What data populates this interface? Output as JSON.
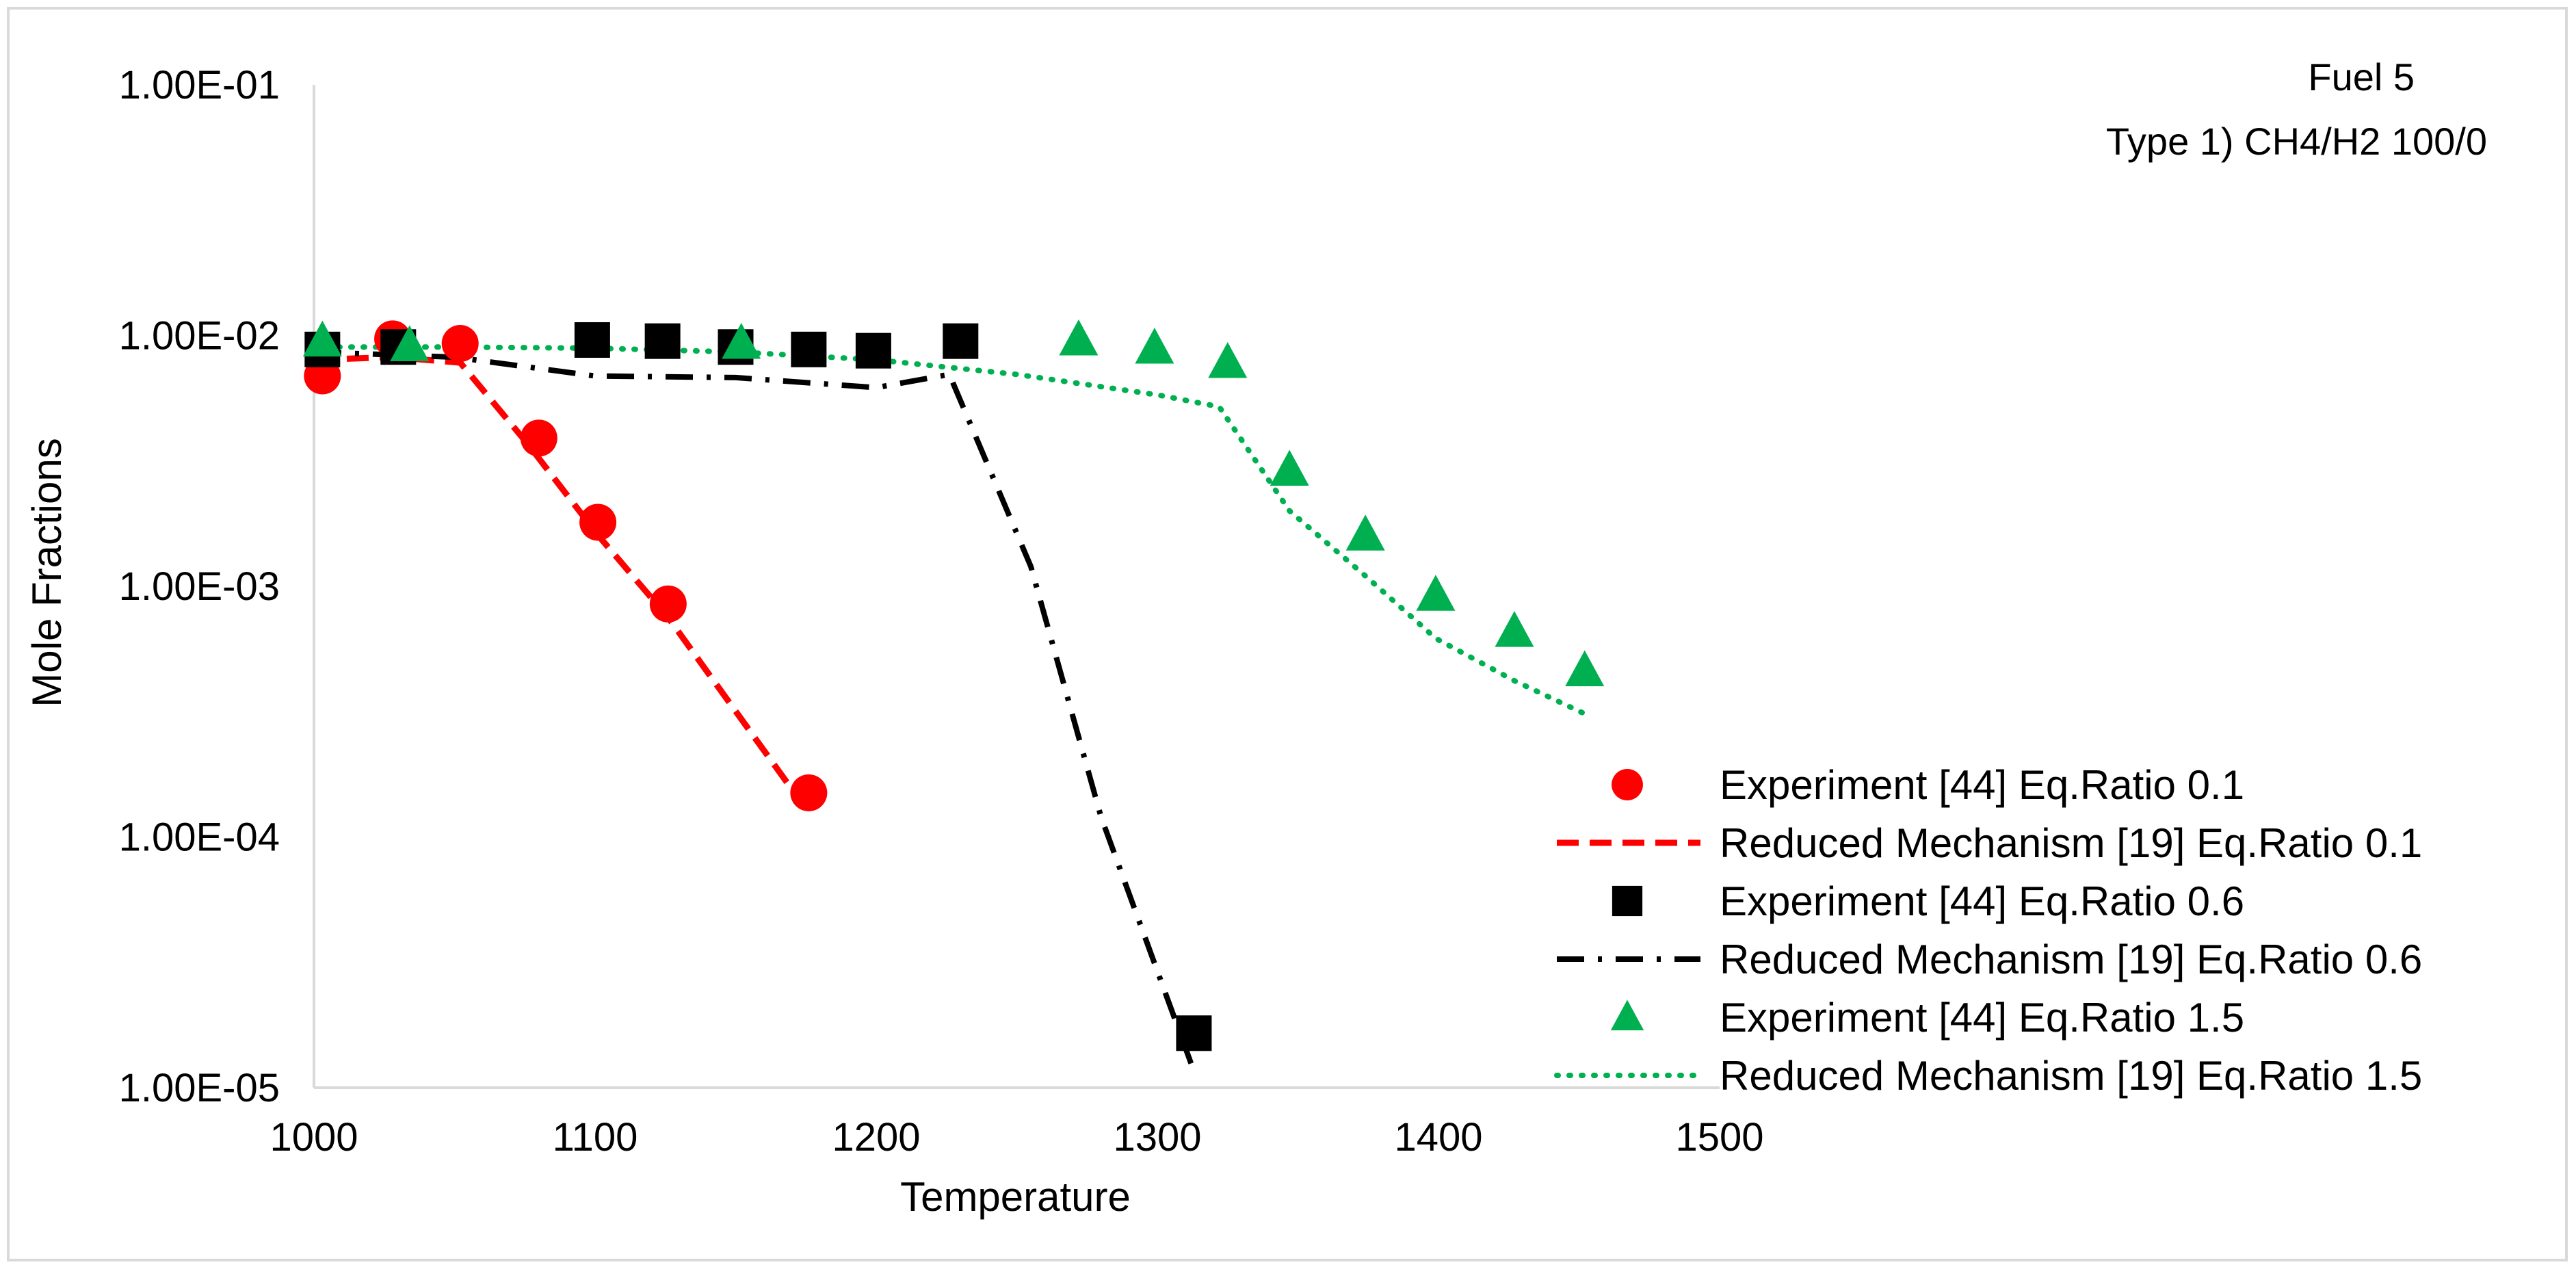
{
  "chart_data": {
    "type": "scatter",
    "xlabel": "Temperature",
    "ylabel": "Mole Fractions",
    "xlim": [
      1000,
      1500
    ],
    "ylim": [
      1e-05,
      0.1
    ],
    "yscale": "log",
    "grid": false,
    "x_ticks": [
      1000,
      1100,
      1200,
      1300,
      1400,
      1500
    ],
    "x_tick_labels": [
      "1000",
      "1100",
      "1200",
      "1300",
      "1400",
      "1500"
    ],
    "y_ticks": [
      1e-05,
      0.0001,
      0.001,
      0.01,
      0.1
    ],
    "y_tick_labels": [
      "1.00E-05",
      "1.00E-04",
      "1.00E-03",
      "1.00E-02",
      "1.00E-01"
    ],
    "annotation": [
      "Fuel 5",
      "Type 1) CH4/H2 100/0"
    ],
    "legend_position": "right",
    "series": [
      {
        "name": "Experiment [44] Eq.Ratio 0.1",
        "kind": "marker",
        "marker": "circle",
        "color": "#ff0000",
        "x": [
          1003,
          1028,
          1052,
          1080,
          1101,
          1126,
          1176
        ],
        "y": [
          0.0069,
          0.0097,
          0.0093,
          0.0039,
          0.0018,
          0.00085,
          0.00015
        ]
      },
      {
        "name": "Reduced Mechanism [19] Eq.Ratio 0.1",
        "kind": "line",
        "dash": "dashed",
        "color": "#ff0000",
        "x": [
          1000,
          1028,
          1052,
          1076,
          1101,
          1126,
          1176
        ],
        "y": [
          0.008,
          0.0082,
          0.0078,
          0.0037,
          0.0016,
          0.00075,
          0.000125
        ]
      },
      {
        "name": "Experiment [44] Eq.Ratio 0.6",
        "kind": "marker",
        "marker": "square",
        "color": "#000000",
        "x": [
          1003,
          1030,
          1099,
          1124,
          1150,
          1176,
          1199,
          1230,
          1313
        ],
        "y": [
          0.0088,
          0.009,
          0.0096,
          0.0095,
          0.009,
          0.0088,
          0.0087,
          0.0095,
          1.65e-05
        ]
      },
      {
        "name": "Reduced Mechanism [19] Eq.Ratio 0.6",
        "kind": "line",
        "dash": "dashdot",
        "color": "#000000",
        "x": [
          1000,
          1050,
          1100,
          1150,
          1200,
          1226,
          1255,
          1280,
          1312
        ],
        "y": [
          0.0086,
          0.0082,
          0.0069,
          0.0068,
          0.0062,
          0.007,
          0.0012,
          0.00012,
          1.25e-05
        ]
      },
      {
        "name": "Experiment [44] Eq.Ratio 1.5",
        "kind": "marker",
        "marker": "triangle",
        "color": "#00b050",
        "x": [
          1003,
          1034,
          1152,
          1272,
          1299,
          1325,
          1347,
          1374,
          1399,
          1427,
          1452
        ],
        "y": [
          0.0095,
          0.0091,
          0.0093,
          0.0096,
          0.0089,
          0.0078,
          0.0029,
          0.0016,
          0.00092,
          0.00066,
          0.00046
        ]
      },
      {
        "name": "Reduced Mechanism [19] Eq.Ratio 1.5",
        "kind": "line",
        "dash": "dotted",
        "color": "#00b050",
        "x": [
          1000,
          1050,
          1100,
          1150,
          1200,
          1250,
          1300,
          1322,
          1347,
          1374,
          1399,
          1427,
          1452
        ],
        "y": [
          0.009,
          0.009,
          0.0089,
          0.0086,
          0.008,
          0.007,
          0.0058,
          0.0052,
          0.002,
          0.0011,
          0.00062,
          0.00042,
          0.00031
        ]
      }
    ]
  }
}
